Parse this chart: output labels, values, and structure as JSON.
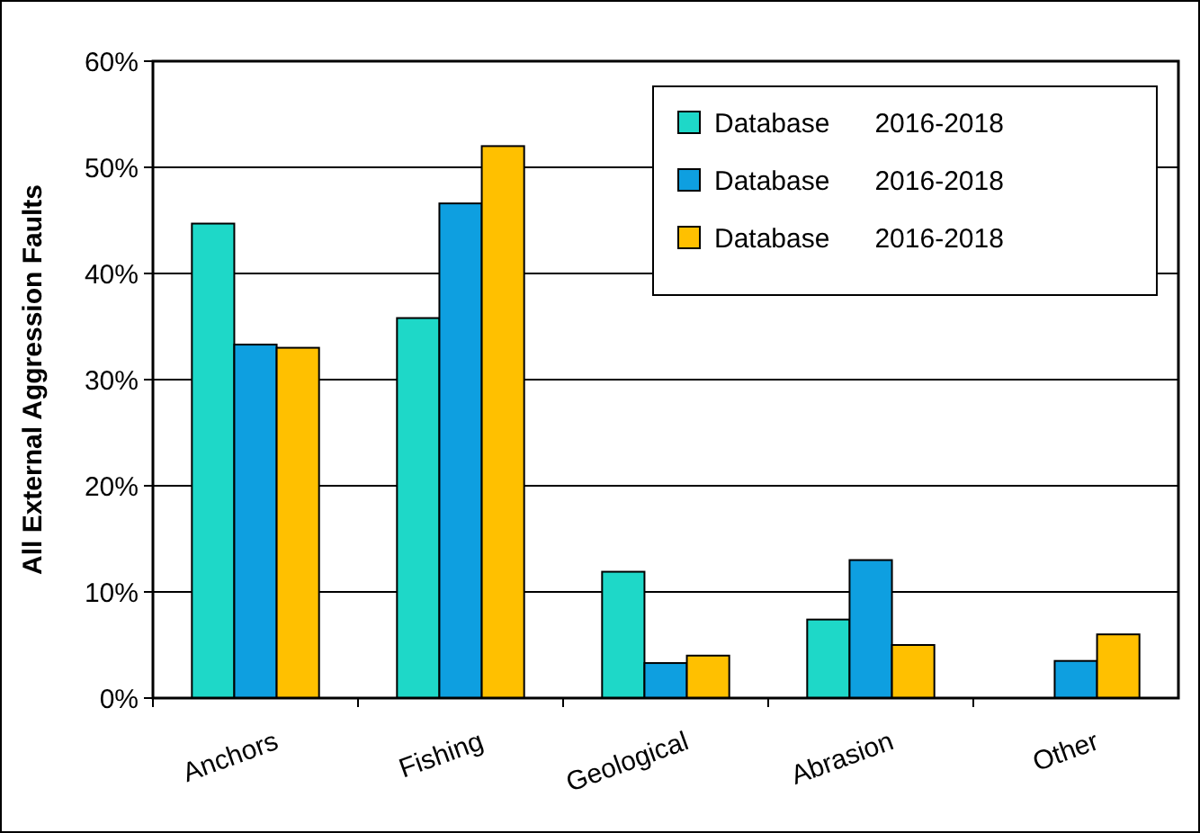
{
  "chart_data": {
    "type": "bar",
    "ylabel": "All External Aggression Faults",
    "categories": [
      "Anchors",
      "Fishing",
      "Geological",
      "Abrasion",
      "Other"
    ],
    "series": [
      {
        "name": "Database      2016-2018",
        "color": "#1ed8c8",
        "values": [
          44.7,
          35.8,
          11.9,
          7.4,
          0
        ]
      },
      {
        "name": "Database      2016-2018",
        "color": "#0e9fe0",
        "values": [
          33.3,
          46.6,
          3.3,
          13.0,
          3.5
        ]
      },
      {
        "name": "Database      2016-2018",
        "color": "#ffc000",
        "values": [
          33.0,
          52.0,
          4.0,
          5.0,
          6.0
        ]
      }
    ],
    "ylim": [
      0,
      60
    ],
    "yticks": [
      {
        "value": 0,
        "label": "0%"
      },
      {
        "value": 10,
        "label": "10%"
      },
      {
        "value": 20,
        "label": "20%"
      },
      {
        "value": 30,
        "label": "30%"
      },
      {
        "value": 40,
        "label": "40%"
      },
      {
        "value": 50,
        "label": "50%"
      },
      {
        "value": 60,
        "label": "60%"
      }
    ],
    "grid": "y",
    "legend": "top right"
  }
}
